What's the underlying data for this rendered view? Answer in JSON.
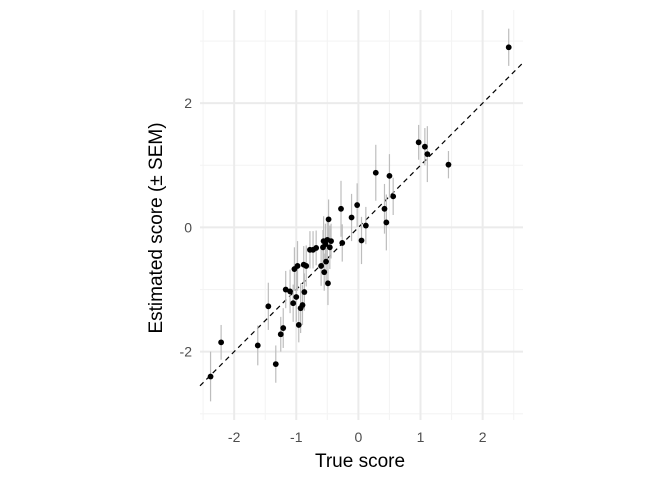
{
  "chart_data": {
    "type": "scatter",
    "title": "",
    "xlabel": "True score",
    "ylabel": "Estimated score (± SEM)",
    "xlim": [
      -2.55,
      2.65
    ],
    "ylim": [
      -3.1,
      3.5
    ],
    "x_ticks": [
      -2,
      -1,
      0,
      1,
      2
    ],
    "y_ticks": [
      -2,
      0,
      2
    ],
    "x_tick_labels": [
      "-2",
      "-1",
      "0",
      "1",
      "2"
    ],
    "y_tick_labels": [
      "-2",
      "0",
      "2"
    ],
    "grid": true,
    "legend": "none",
    "colors": {
      "point": "#000000",
      "error_bar": "#bdbdbd",
      "reference_line": "#000000",
      "grid_major": "#ebebeb",
      "grid_minor": "#f4f4f4"
    },
    "reference_line": {
      "style": "dashed",
      "slope": 1,
      "intercept": 0
    },
    "points": [
      {
        "x": -2.38,
        "y": -2.4,
        "sem": 0.4
      },
      {
        "x": -2.21,
        "y": -1.85,
        "sem": 0.28
      },
      {
        "x": -1.62,
        "y": -1.9,
        "sem": 0.32
      },
      {
        "x": -1.45,
        "y": -1.27,
        "sem": 0.38
      },
      {
        "x": -1.33,
        "y": -2.2,
        "sem": 0.3
      },
      {
        "x": -1.25,
        "y": -1.72,
        "sem": 0.28
      },
      {
        "x": -1.21,
        "y": -1.62,
        "sem": 0.32
      },
      {
        "x": -1.17,
        "y": -1.0,
        "sem": 0.3
      },
      {
        "x": -1.1,
        "y": -1.03,
        "sem": 0.35
      },
      {
        "x": -1.05,
        "y": -1.22,
        "sem": 0.3
      },
      {
        "x": -1.03,
        "y": -0.67,
        "sem": 0.35
      },
      {
        "x": -1.0,
        "y": -1.12,
        "sem": 0.4
      },
      {
        "x": -0.98,
        "y": -0.62,
        "sem": 0.4
      },
      {
        "x": -0.96,
        "y": -1.57,
        "sem": 0.28
      },
      {
        "x": -0.93,
        "y": -1.3,
        "sem": 0.4
      },
      {
        "x": -0.9,
        "y": -1.25,
        "sem": 0.32
      },
      {
        "x": -0.87,
        "y": -1.04,
        "sem": 0.3
      },
      {
        "x": -0.88,
        "y": -0.6,
        "sem": 0.3
      },
      {
        "x": -0.84,
        "y": -0.62,
        "sem": 0.33
      },
      {
        "x": -0.78,
        "y": -0.36,
        "sem": 0.3
      },
      {
        "x": -0.73,
        "y": -0.36,
        "sem": 0.3
      },
      {
        "x": -0.68,
        "y": -0.33,
        "sem": 0.28
      },
      {
        "x": -0.6,
        "y": -0.62,
        "sem": 0.32
      },
      {
        "x": -0.57,
        "y": -0.32,
        "sem": 0.28
      },
      {
        "x": -0.56,
        "y": -0.22,
        "sem": 0.4
      },
      {
        "x": -0.55,
        "y": -0.72,
        "sem": 0.3
      },
      {
        "x": -0.53,
        "y": -0.27,
        "sem": 0.33
      },
      {
        "x": -0.52,
        "y": -0.55,
        "sem": 0.38
      },
      {
        "x": -0.5,
        "y": -0.2,
        "sem": 0.3
      },
      {
        "x": -0.49,
        "y": -0.9,
        "sem": 0.35
      },
      {
        "x": -0.48,
        "y": 0.13,
        "sem": 0.32
      },
      {
        "x": -0.46,
        "y": -0.32,
        "sem": 0.35
      },
      {
        "x": -0.44,
        "y": -0.22,
        "sem": 0.28
      },
      {
        "x": -0.28,
        "y": 0.3,
        "sem": 0.45
      },
      {
        "x": -0.26,
        "y": -0.25,
        "sem": 0.3
      },
      {
        "x": -0.11,
        "y": 0.16,
        "sem": 0.38
      },
      {
        "x": -0.02,
        "y": 0.36,
        "sem": 0.35
      },
      {
        "x": 0.05,
        "y": -0.21,
        "sem": 0.38
      },
      {
        "x": 0.12,
        "y": 0.03,
        "sem": 0.3
      },
      {
        "x": 0.28,
        "y": 0.88,
        "sem": 0.45
      },
      {
        "x": 0.42,
        "y": 0.3,
        "sem": 0.4
      },
      {
        "x": 0.45,
        "y": 0.08,
        "sem": 0.45
      },
      {
        "x": 0.5,
        "y": 0.83,
        "sem": 0.35
      },
      {
        "x": 0.56,
        "y": 0.5,
        "sem": 0.3
      },
      {
        "x": 0.97,
        "y": 1.37,
        "sem": 0.28
      },
      {
        "x": 1.07,
        "y": 1.3,
        "sem": 0.3
      },
      {
        "x": 1.11,
        "y": 1.18,
        "sem": 0.45
      },
      {
        "x": 1.45,
        "y": 1.01,
        "sem": 0.22
      },
      {
        "x": 2.42,
        "y": 2.9,
        "sem": 0.3
      }
    ]
  }
}
